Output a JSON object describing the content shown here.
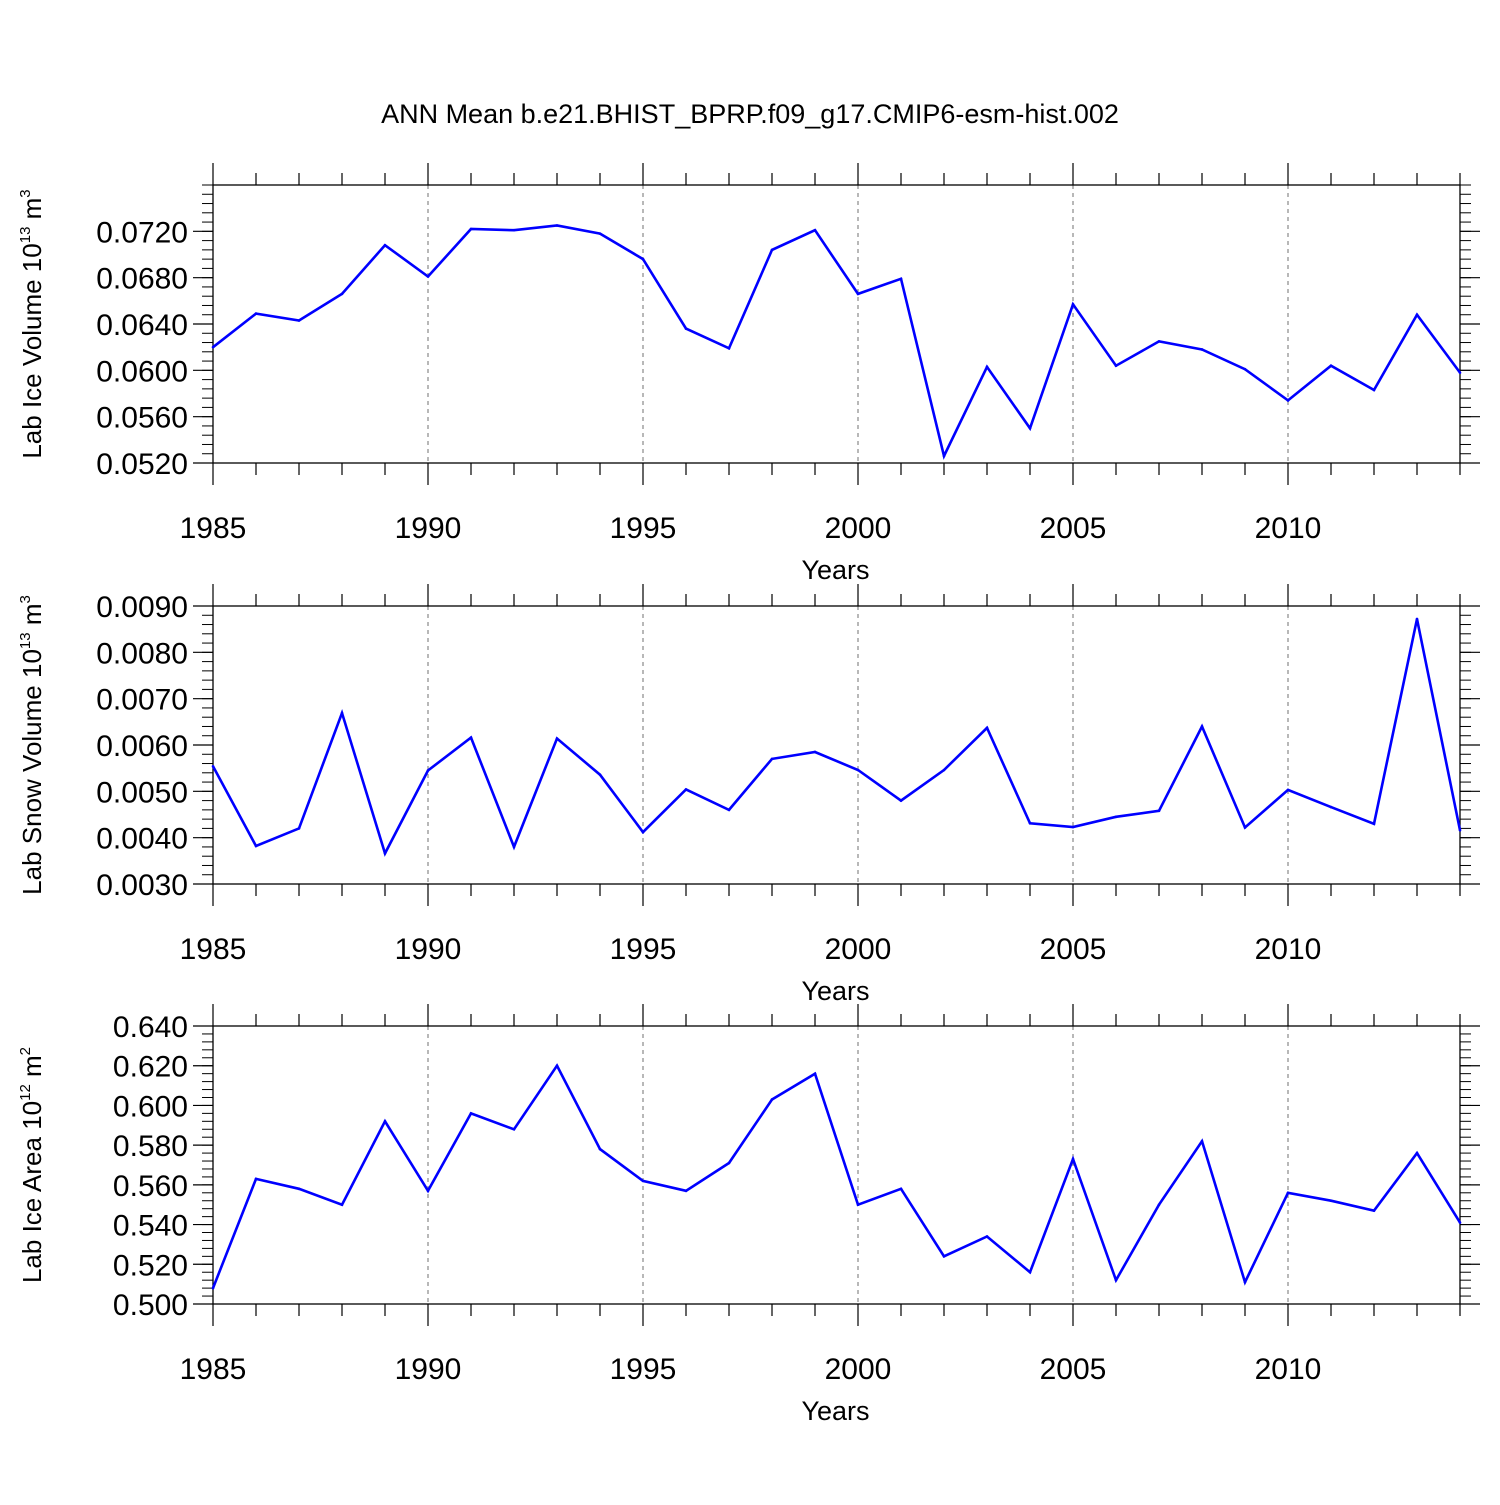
{
  "figure_title": "ANN Mean b.e21.BHIST_BPRP.f09_g17.CMIP6-esm-hist.002",
  "colors": {
    "line": "#0000ff",
    "axis": "#000000",
    "grid": "#888888"
  },
  "chart_data": [
    {
      "type": "line",
      "ylabel": {
        "text": "Lab Ice Volume 10",
        "exponent": "13",
        "unit": "m",
        "unit_exponent": "3"
      },
      "xlabel": "Years",
      "xlim": [
        1985,
        2014
      ],
      "ylim": [
        0.052,
        0.076
      ],
      "yticks": [
        0.052,
        0.056,
        0.06,
        0.064,
        0.068,
        0.072
      ],
      "ytick_labels": [
        "0.0520",
        "0.0560",
        "0.0600",
        "0.0640",
        "0.0680",
        "0.0720"
      ],
      "xticks": [
        1985,
        1990,
        1995,
        2000,
        2005,
        2010
      ],
      "xtick_labels": [
        "1985",
        "1990",
        "1995",
        "2000",
        "2005",
        "2010"
      ],
      "x": [
        1985,
        1986,
        1987,
        1988,
        1989,
        1990,
        1991,
        1992,
        1993,
        1994,
        1995,
        1996,
        1997,
        1998,
        1999,
        2000,
        2001,
        2002,
        2003,
        2004,
        2005,
        2006,
        2007,
        2008,
        2009,
        2010,
        2011,
        2012,
        2013,
        2014
      ],
      "values": [
        0.062,
        0.0649,
        0.0643,
        0.0666,
        0.0708,
        0.0681,
        0.0722,
        0.0721,
        0.0725,
        0.0718,
        0.0696,
        0.0636,
        0.0619,
        0.0704,
        0.0721,
        0.0666,
        0.0679,
        0.0526,
        0.0603,
        0.055,
        0.0657,
        0.0604,
        0.0625,
        0.0618,
        0.0601,
        0.0574,
        0.0604,
        0.0583,
        0.0648,
        0.0598
      ]
    },
    {
      "type": "line",
      "ylabel": {
        "text": "Lab Snow Volume 10",
        "exponent": "13",
        "unit": "m",
        "unit_exponent": "3"
      },
      "xlabel": "Years",
      "xlim": [
        1985,
        2014
      ],
      "ylim": [
        0.003,
        0.009
      ],
      "yticks": [
        0.003,
        0.004,
        0.005,
        0.006,
        0.007,
        0.008,
        0.009
      ],
      "ytick_labels": [
        "0.0030",
        "0.0040",
        "0.0050",
        "0.0060",
        "0.0070",
        "0.0080",
        "0.0090"
      ],
      "xticks": [
        1985,
        1990,
        1995,
        2000,
        2005,
        2010
      ],
      "xtick_labels": [
        "1985",
        "1990",
        "1995",
        "2000",
        "2005",
        "2010"
      ],
      "x": [
        1985,
        1986,
        1987,
        1988,
        1989,
        1990,
        1991,
        1992,
        1993,
        1994,
        1995,
        1996,
        1997,
        1998,
        1999,
        2000,
        2001,
        2002,
        2003,
        2004,
        2005,
        2006,
        2007,
        2008,
        2009,
        2010,
        2011,
        2012,
        2013,
        2014
      ],
      "values": [
        0.00554,
        0.00382,
        0.0042,
        0.00669,
        0.00366,
        0.00545,
        0.00616,
        0.0038,
        0.00614,
        0.00536,
        0.00412,
        0.00504,
        0.0046,
        0.0057,
        0.00585,
        0.00546,
        0.0048,
        0.00546,
        0.00637,
        0.00431,
        0.00423,
        0.00445,
        0.00458,
        0.0064,
        0.00422,
        0.00503,
        0.00466,
        0.0043,
        0.00872,
        0.00416
      ]
    },
    {
      "type": "line",
      "ylabel": {
        "text": "Lab Ice Area 10",
        "exponent": "12",
        "unit": "m",
        "unit_exponent": "2"
      },
      "xlabel": "Years",
      "xlim": [
        1985,
        2014
      ],
      "ylim": [
        0.5,
        0.64
      ],
      "yticks": [
        0.5,
        0.52,
        0.54,
        0.56,
        0.58,
        0.6,
        0.62,
        0.64
      ],
      "ytick_labels": [
        "0.500",
        "0.520",
        "0.540",
        "0.560",
        "0.580",
        "0.600",
        "0.620",
        "0.640"
      ],
      "xticks": [
        1985,
        1990,
        1995,
        2000,
        2005,
        2010
      ],
      "xtick_labels": [
        "1985",
        "1990",
        "1995",
        "2000",
        "2005",
        "2010"
      ],
      "x": [
        1985,
        1986,
        1987,
        1988,
        1989,
        1990,
        1991,
        1992,
        1993,
        1994,
        1995,
        1996,
        1997,
        1998,
        1999,
        2000,
        2001,
        2002,
        2003,
        2004,
        2005,
        2006,
        2007,
        2008,
        2009,
        2010,
        2011,
        2012,
        2013,
        2014
      ],
      "values": [
        0.508,
        0.563,
        0.558,
        0.55,
        0.592,
        0.557,
        0.596,
        0.588,
        0.62,
        0.578,
        0.562,
        0.557,
        0.571,
        0.603,
        0.616,
        0.55,
        0.558,
        0.524,
        0.534,
        0.516,
        0.573,
        0.512,
        0.55,
        0.582,
        0.511,
        0.556,
        0.552,
        0.547,
        0.576,
        0.541
      ]
    }
  ]
}
